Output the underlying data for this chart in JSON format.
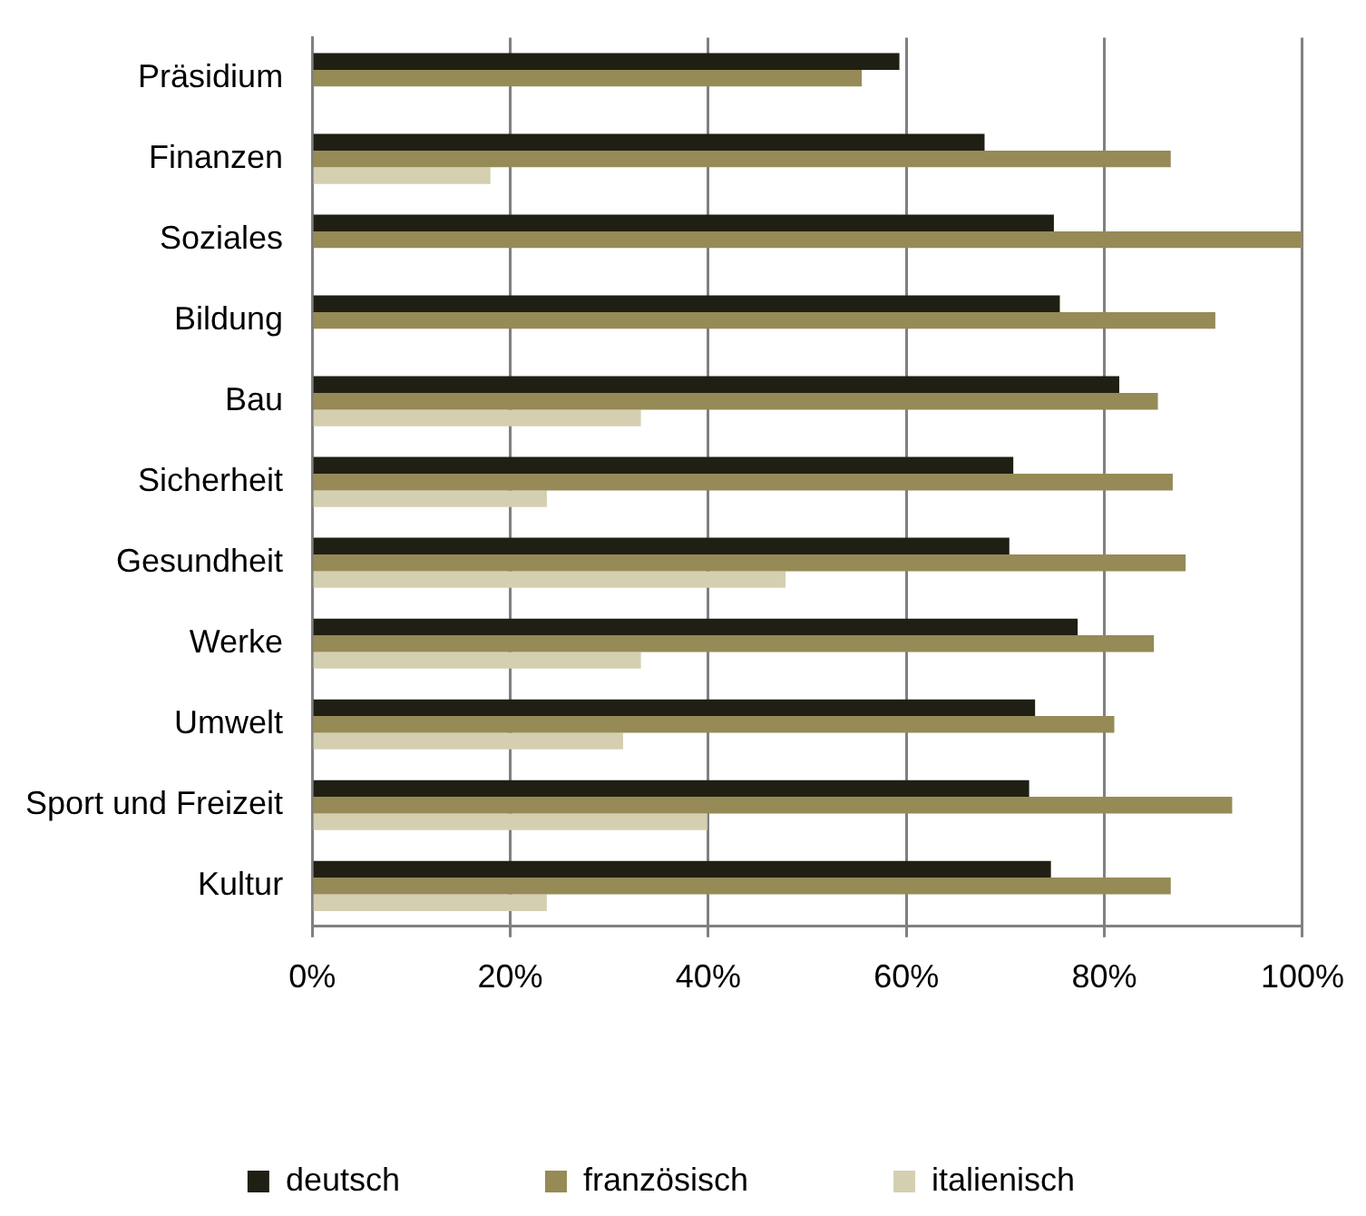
{
  "chart_data": {
    "type": "bar",
    "orientation": "horizontal",
    "categories": [
      "Präsidium",
      "Finanzen",
      "Soziales",
      "Bildung",
      "Bau",
      "Sicherheit",
      "Gesundheit",
      "Werke",
      "Umwelt",
      "Sport und Freizeit",
      "Kultur"
    ],
    "series": [
      {
        "name": "deutsch",
        "color": "#201f14",
        "values": [
          59.3,
          67.9,
          74.9,
          75.5,
          81.5,
          70.8,
          70.4,
          77.3,
          73.0,
          72.4,
          74.6
        ]
      },
      {
        "name": "französisch",
        "color": "#968a56",
        "values": [
          55.5,
          86.7,
          100,
          91.2,
          85.4,
          86.9,
          88.2,
          85.0,
          81.0,
          92.9,
          86.7
        ]
      },
      {
        "name": "italienisch",
        "color": "#d5cfb2",
        "values": [
          null,
          18.0,
          null,
          null,
          33.2,
          23.7,
          47.8,
          33.2,
          31.4,
          39.9,
          23.7
        ]
      }
    ],
    "xlim": [
      0,
      100
    ],
    "xticks": [
      {
        "value": 0,
        "label": "0%"
      },
      {
        "value": 20,
        "label": "20%"
      },
      {
        "value": 40,
        "label": "40%"
      },
      {
        "value": 60,
        "label": "60%"
      },
      {
        "value": 80,
        "label": "80%"
      },
      {
        "value": 100,
        "label": "100%"
      }
    ],
    "grid": "x",
    "legend": "bottom"
  }
}
